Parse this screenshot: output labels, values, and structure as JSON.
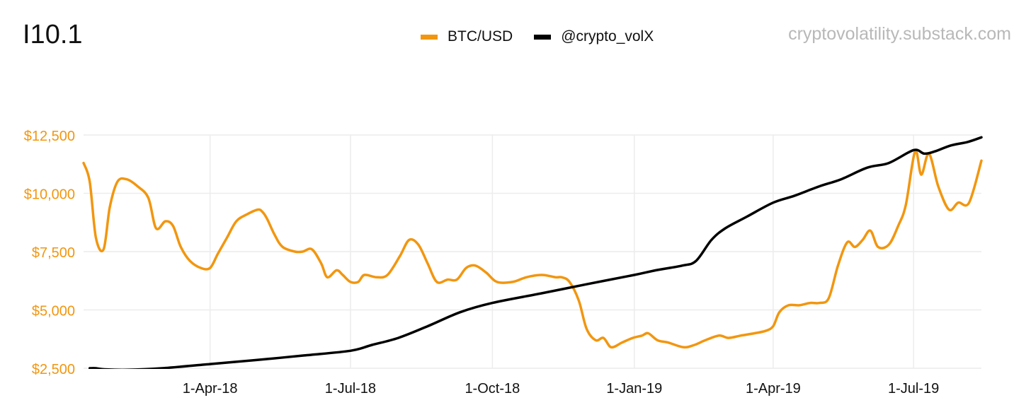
{
  "title": "I10.1",
  "watermark": "cryptovolatility.substack.com",
  "colors": {
    "btc": "#f2960f",
    "vol": "#000000",
    "grid": "#ececec",
    "ytick": "#f2960f",
    "xtick": "#111111"
  },
  "legend": [
    {
      "label": "BTC/USD",
      "color": "#f2960f"
    },
    {
      "label": "@crypto_volX",
      "color": "#000000"
    }
  ],
  "chart_data": {
    "type": "line",
    "x_type": "date",
    "xlim": [
      "2018-01-09",
      "2019-08-14"
    ],
    "ylim": [
      2500,
      12500
    ],
    "y_ticks": [
      2500,
      5000,
      7500,
      10000,
      12500
    ],
    "y_tick_labels": [
      "$2,500",
      "$5,000",
      "$7,500",
      "$10,000",
      "$12,500"
    ],
    "x_ticks": [
      "2018-04-01",
      "2018-07-01",
      "2018-10-01",
      "2019-01-01",
      "2019-04-01",
      "2019-07-01"
    ],
    "x_tick_labels": [
      "1-Apr-18",
      "1-Jul-18",
      "1-Oct-18",
      "1-Jan-19",
      "1-Apr-19",
      "1-Jul-19"
    ],
    "grid": true,
    "legend_position": "top-center",
    "series": [
      {
        "name": "BTC/USD",
        "color": "#f2960f",
        "x": [
          "2018-01-09",
          "2018-01-13",
          "2018-01-17",
          "2018-01-22",
          "2018-01-26",
          "2018-01-31",
          "2018-02-06",
          "2018-02-13",
          "2018-02-20",
          "2018-02-25",
          "2018-03-03",
          "2018-03-08",
          "2018-03-13",
          "2018-03-19",
          "2018-03-26",
          "2018-04-01",
          "2018-04-06",
          "2018-04-12",
          "2018-04-18",
          "2018-04-25",
          "2018-05-02",
          "2018-05-05",
          "2018-05-08",
          "2018-05-13",
          "2018-05-18",
          "2018-05-26",
          "2018-05-31",
          "2018-06-06",
          "2018-06-12",
          "2018-06-16",
          "2018-06-22",
          "2018-06-26",
          "2018-07-01",
          "2018-07-06",
          "2018-07-10",
          "2018-07-18",
          "2018-07-25",
          "2018-08-02",
          "2018-08-08",
          "2018-08-14",
          "2018-08-20",
          "2018-08-26",
          "2018-09-02",
          "2018-09-08",
          "2018-09-14",
          "2018-09-20",
          "2018-09-27",
          "2018-10-04",
          "2018-10-14",
          "2018-10-23",
          "2018-11-02",
          "2018-11-11",
          "2018-11-15",
          "2018-11-20",
          "2018-11-26",
          "2018-12-01",
          "2018-12-07",
          "2018-12-12",
          "2018-12-17",
          "2018-12-24",
          "2018-12-31",
          "2019-01-06",
          "2019-01-10",
          "2019-01-16",
          "2019-01-23",
          "2019-02-02",
          "2019-02-09",
          "2019-02-16",
          "2019-02-25",
          "2019-03-03",
          "2019-03-11",
          "2019-03-20",
          "2019-03-27",
          "2019-04-01",
          "2019-04-05",
          "2019-04-11",
          "2019-04-18",
          "2019-04-25",
          "2019-05-01",
          "2019-05-07",
          "2019-05-13",
          "2019-05-19",
          "2019-05-24",
          "2019-05-29",
          "2019-06-03",
          "2019-06-08",
          "2019-06-15",
          "2019-06-21",
          "2019-06-26",
          "2019-07-02",
          "2019-07-06",
          "2019-07-11",
          "2019-07-17",
          "2019-07-24",
          "2019-07-30",
          "2019-08-06",
          "2019-08-14"
        ],
        "y": [
          11300,
          10500,
          8100,
          7600,
          9400,
          10500,
          10600,
          10300,
          9800,
          8500,
          8800,
          8600,
          7700,
          7100,
          6800,
          6800,
          7400,
          8100,
          8800,
          9100,
          9300,
          9200,
          8900,
          8200,
          7700,
          7500,
          7500,
          7600,
          7000,
          6400,
          6700,
          6500,
          6200,
          6200,
          6500,
          6400,
          6500,
          7300,
          8000,
          7800,
          7000,
          6200,
          6300,
          6300,
          6800,
          6900,
          6600,
          6200,
          6200,
          6400,
          6500,
          6400,
          6400,
          6200,
          5400,
          4200,
          3700,
          3800,
          3400,
          3600,
          3800,
          3900,
          4000,
          3700,
          3600,
          3400,
          3500,
          3700,
          3900,
          3800,
          3900,
          4000,
          4100,
          4300,
          4900,
          5200,
          5200,
          5300,
          5300,
          5500,
          6900,
          7900,
          7700,
          8000,
          8400,
          7700,
          7800,
          8600,
          9500,
          11800,
          10800,
          11700,
          10300,
          9300,
          9600,
          9600,
          11400
        ]
      },
      {
        "name": "@crypto_volX",
        "color": "#000000",
        "x": [
          "2018-01-13",
          "2018-01-17",
          "2018-01-23",
          "2018-02-06",
          "2018-03-01",
          "2018-04-01",
          "2018-05-01",
          "2018-06-01",
          "2018-07-01",
          "2018-07-15",
          "2018-08-01",
          "2018-08-20",
          "2018-09-10",
          "2018-10-01",
          "2018-11-01",
          "2018-12-01",
          "2019-01-01",
          "2019-01-15",
          "2019-02-01",
          "2019-02-10",
          "2019-02-20",
          "2019-03-01",
          "2019-03-15",
          "2019-04-01",
          "2019-04-15",
          "2019-05-01",
          "2019-05-15",
          "2019-06-01",
          "2019-06-15",
          "2019-07-01",
          "2019-07-08",
          "2019-07-15",
          "2019-07-25",
          "2019-08-05",
          "2019-08-14"
        ],
        "y": [
          2500,
          2500,
          2450,
          2430,
          2500,
          2680,
          2850,
          3050,
          3250,
          3500,
          3800,
          4300,
          4900,
          5300,
          5700,
          6100,
          6500,
          6700,
          6900,
          7100,
          8000,
          8500,
          9000,
          9600,
          9900,
          10300,
          10600,
          11100,
          11300,
          11850,
          11700,
          11800,
          12050,
          12200,
          12400
        ]
      }
    ]
  }
}
